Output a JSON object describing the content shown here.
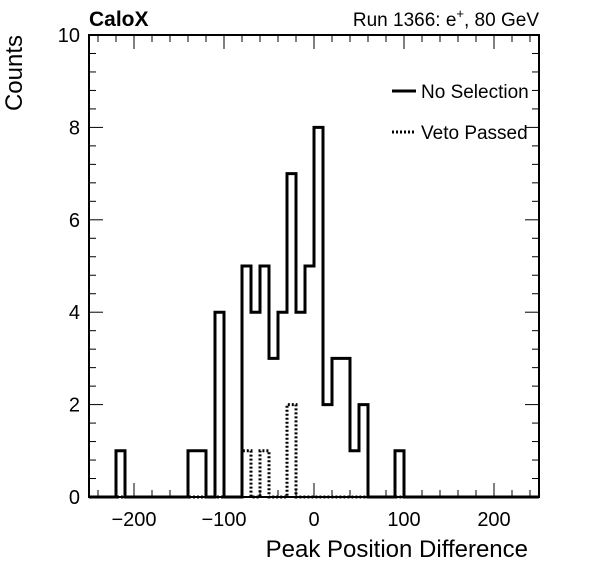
{
  "chart_data": {
    "type": "histogram",
    "experiment_label": "CaloX",
    "run_label": "Run 1366: e",
    "run_label_sup": "+",
    "run_label_suffix": ", 80 GeV",
    "xlabel": "Peak Position Difference",
    "ylabel": "Counts",
    "xlim": [
      -250,
      250
    ],
    "ylim": [
      0,
      10
    ],
    "x_ticks": [
      -200,
      -100,
      0,
      100,
      200
    ],
    "x_tick_labels": [
      "−200",
      "−100",
      "0",
      "100",
      "200"
    ],
    "y_ticks": [
      0,
      2,
      4,
      6,
      8,
      10
    ],
    "y_tick_labels": [
      "0",
      "2",
      "4",
      "6",
      "8",
      "10"
    ],
    "bin_edges": [
      -250,
      -240,
      -230,
      -220,
      -210,
      -200,
      -190,
      -180,
      -170,
      -160,
      -150,
      -140,
      -130,
      -120,
      -110,
      -100,
      -90,
      -80,
      -70,
      -60,
      -50,
      -40,
      -30,
      -20,
      -10,
      0,
      10,
      20,
      30,
      40,
      50,
      60,
      70,
      80,
      90,
      100,
      110,
      120,
      130,
      140,
      150,
      160,
      170,
      180,
      190,
      200,
      210,
      220,
      230,
      240,
      250
    ],
    "legend_position": "top-right",
    "grid": false,
    "series": [
      {
        "name": "No Selection",
        "style": "solid",
        "color": "#000000",
        "values": [
          0,
          0,
          0,
          1,
          0,
          0,
          0,
          0,
          0,
          0,
          0,
          1,
          1,
          0,
          4,
          0,
          0,
          5,
          4,
          5,
          3,
          4,
          7,
          4,
          5,
          8,
          2,
          3,
          3,
          1,
          2,
          0,
          0,
          0,
          1,
          0,
          0,
          0,
          0,
          0,
          0,
          0,
          0,
          0,
          0,
          0,
          0,
          0,
          0,
          0
        ]
      },
      {
        "name": "Veto Passed",
        "style": "dotted",
        "color": "#000000",
        "values": [
          0,
          0,
          0,
          0,
          0,
          0,
          0,
          0,
          0,
          0,
          0,
          0,
          0,
          0,
          0,
          0,
          0,
          1,
          0,
          1,
          0,
          0,
          2,
          0,
          0,
          0,
          0,
          0,
          0,
          0,
          0,
          0,
          0,
          0,
          0,
          0,
          0,
          0,
          0,
          0,
          0,
          0,
          0,
          0,
          0,
          0,
          0,
          0,
          0,
          0
        ]
      }
    ]
  }
}
